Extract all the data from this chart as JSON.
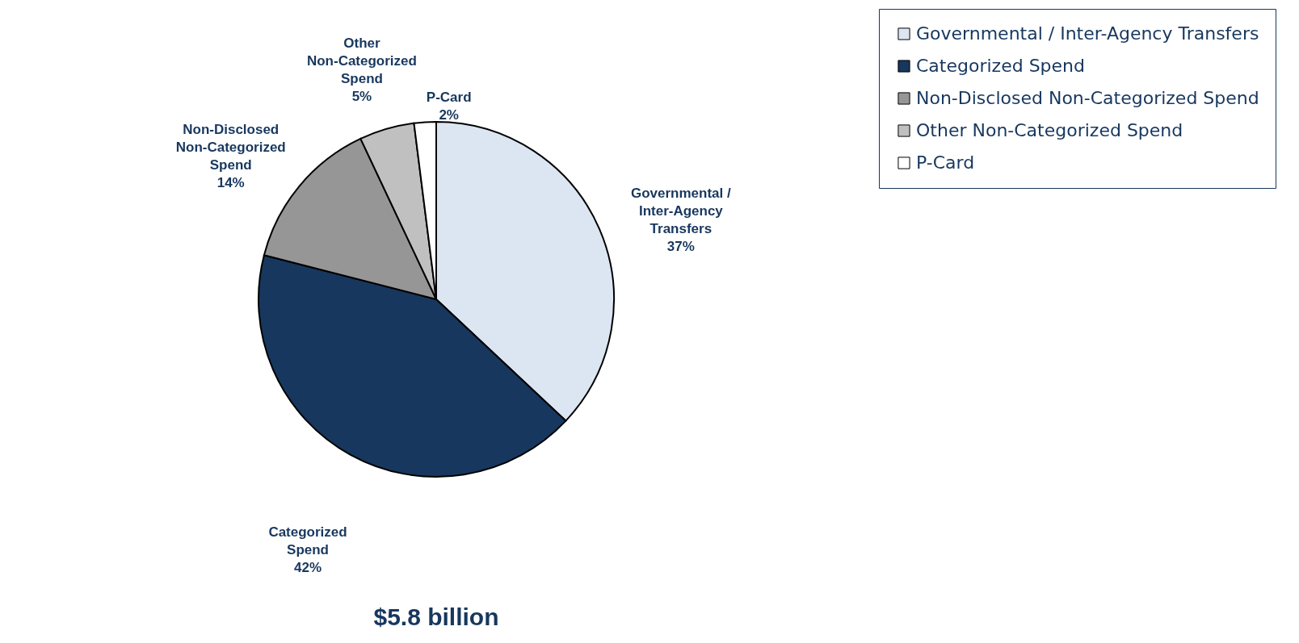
{
  "chart_data": {
    "type": "pie",
    "title": "$5.8 billion",
    "categories": [
      "Governmental / Inter-Agency Transfers",
      "Categorized Spend",
      "Non-Disclosed Non-Categorized Spend",
      "Other Non-Categorized Spend",
      "P-Card"
    ],
    "values": [
      37,
      42,
      14,
      5,
      2
    ],
    "value_labels": [
      "37%",
      "42%",
      "14%",
      "5%",
      "2%"
    ],
    "colors": [
      "#dce6f2",
      "#17375e",
      "#969696",
      "#c0c0c0",
      "#ffffff"
    ],
    "legend": "right"
  }
}
